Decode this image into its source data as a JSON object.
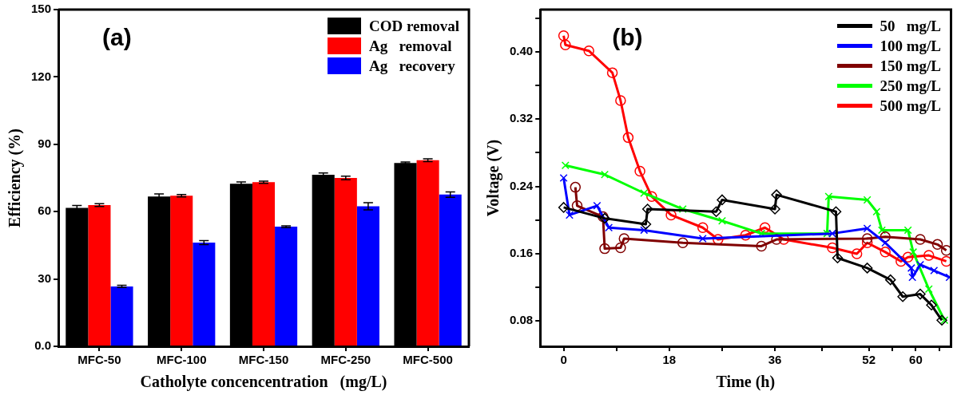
{
  "chart_data": [
    {
      "type": "bar",
      "annotations": [
        "(a)"
      ],
      "xlabel": "Catholyte concencentration   (mg/L)",
      "ylabel": "Efficiency (%)",
      "categories": [
        "MFC-50",
        "MFC-100",
        "MFC-150",
        "MFC-250",
        "MFC-500"
      ],
      "series": [
        {
          "name": "COD removal",
          "color": "#000000",
          "values": [
            61.7,
            66.7,
            72.4,
            76.4,
            81.7
          ],
          "errors": [
            1,
            1.2,
            0.8,
            0.8,
            0.4
          ]
        },
        {
          "name": "Ag   removal",
          "color": "#ff0000",
          "values": [
            62.9,
            67.1,
            73.1,
            75,
            82.9
          ],
          "errors": [
            0.6,
            0.5,
            0.5,
            0.8,
            0.6
          ]
        },
        {
          "name": "Ag   recovery",
          "color": "#0000ff",
          "values": [
            26.7,
            46.2,
            53.3,
            62.4,
            67.6
          ],
          "errors": [
            0.5,
            0.9,
            0.4,
            1.6,
            1.2
          ]
        }
      ],
      "ylim": [
        0,
        150
      ],
      "yticks": [
        {
          "value": 0,
          "label": "0.0"
        },
        30,
        60,
        90,
        120,
        150
      ],
      "legend": "top right"
    },
    {
      "type": "line",
      "annotations": [
        "(b)"
      ],
      "xlabel": "Time (h)",
      "ylabel": "Voltage (V)",
      "series": [
        {
          "name": "50   mg/L",
          "color": "#000000",
          "marker": "diamond",
          "x": [
            0,
            7,
            14,
            14.3,
            26,
            27,
            36,
            36.27,
            46.4,
            46.67,
            51.73,
            55.69,
            57.78,
            60.76,
            62.67,
            64.44
          ],
          "values": [
            0.215,
            0.202,
            0.195,
            0.213,
            0.21,
            0.224,
            0.213,
            0.23,
            0.21,
            0.155,
            0.143,
            0.129,
            0.109,
            0.112,
            0.099,
            0.081
          ]
        },
        {
          "name": "100 mg/L",
          "color": "#0000ff",
          "marker": "cross",
          "x": [
            0,
            1,
            5.7,
            7.7,
            13.7,
            23.7,
            45.78,
            51.73,
            54.8,
            59.24,
            59.42,
            60.76,
            63.11,
            65.73
          ],
          "values": [
            0.25,
            0.206,
            0.217,
            0.191,
            0.188,
            0.178,
            0.184,
            0.19,
            0.173,
            0.143,
            0.132,
            0.147,
            0.14,
            0.132
          ]
        },
        {
          "name": "150 mg/L",
          "color": "#800000",
          "marker": "circle",
          "x": [
            2,
            2.3,
            6.7,
            7,
            9.7,
            10.3,
            20.3,
            33.7,
            36.27,
            51.73,
            54.8,
            60.76,
            63.69,
            65.2
          ],
          "values": [
            0.239,
            0.217,
            0.204,
            0.166,
            0.167,
            0.178,
            0.173,
            0.169,
            0.177,
            0.178,
            0.18,
            0.177,
            0.171,
            0.164
          ]
        },
        {
          "name": "250 mg/L",
          "color": "#00ff00",
          "marker": "cross",
          "x": [
            0.3,
            7,
            13.7,
            20.3,
            27,
            33.7,
            44.89,
            45.16,
            51.73,
            53.33,
            54.22,
            58.67,
            59.56,
            62.22,
            64.89
          ],
          "values": [
            0.265,
            0.254,
            0.232,
            0.213,
            0.199,
            0.184,
            0.184,
            0.228,
            0.224,
            0.21,
            0.188,
            0.188,
            0.162,
            0.118,
            0.081
          ]
        },
        {
          "name": "500 mg/L",
          "color": "#ff0000",
          "marker": "circle",
          "x": [
            0,
            0.3,
            4.3,
            8.3,
            9.7,
            11,
            13,
            15,
            18.3,
            23.7,
            26.3,
            31,
            34.3,
            37.51,
            45.78,
            49.96,
            51.73,
            54.8,
            57.47,
            58.67,
            62.22,
            65.2
          ],
          "values": [
            0.419,
            0.408,
            0.401,
            0.375,
            0.342,
            0.298,
            0.258,
            0.228,
            0.206,
            0.191,
            0.177,
            0.182,
            0.191,
            0.177,
            0.167,
            0.16,
            0.173,
            0.162,
            0.151,
            0.156,
            0.158,
            0.151
          ]
        }
      ],
      "xlim": [
        -4,
        66
      ],
      "xticks": [
        0,
        {
          "value": 9,
          "label": null
        },
        18,
        {
          "value": 27,
          "label": null
        },
        36,
        {
          "value": 44,
          "label": null
        },
        52,
        {
          "value": 56,
          "label": null
        },
        60,
        {
          "value": 64,
          "label": null
        }
      ],
      "ylim": [
        0.05,
        0.45
      ],
      "yticks": [
        {
          "value": 0.08,
          "label": "0.08"
        },
        {
          "value": 0.12,
          "label": null
        },
        {
          "value": 0.16,
          "label": "0.16"
        },
        {
          "value": 0.2,
          "label": null
        },
        {
          "value": 0.24,
          "label": "0.24"
        },
        {
          "value": 0.28,
          "label": null
        },
        {
          "value": 0.32,
          "label": "0.32"
        },
        {
          "value": 0.36,
          "label": null
        },
        {
          "value": 0.4,
          "label": "0.40"
        },
        {
          "value": 0.44,
          "label": null
        }
      ],
      "legend": "top right"
    }
  ]
}
